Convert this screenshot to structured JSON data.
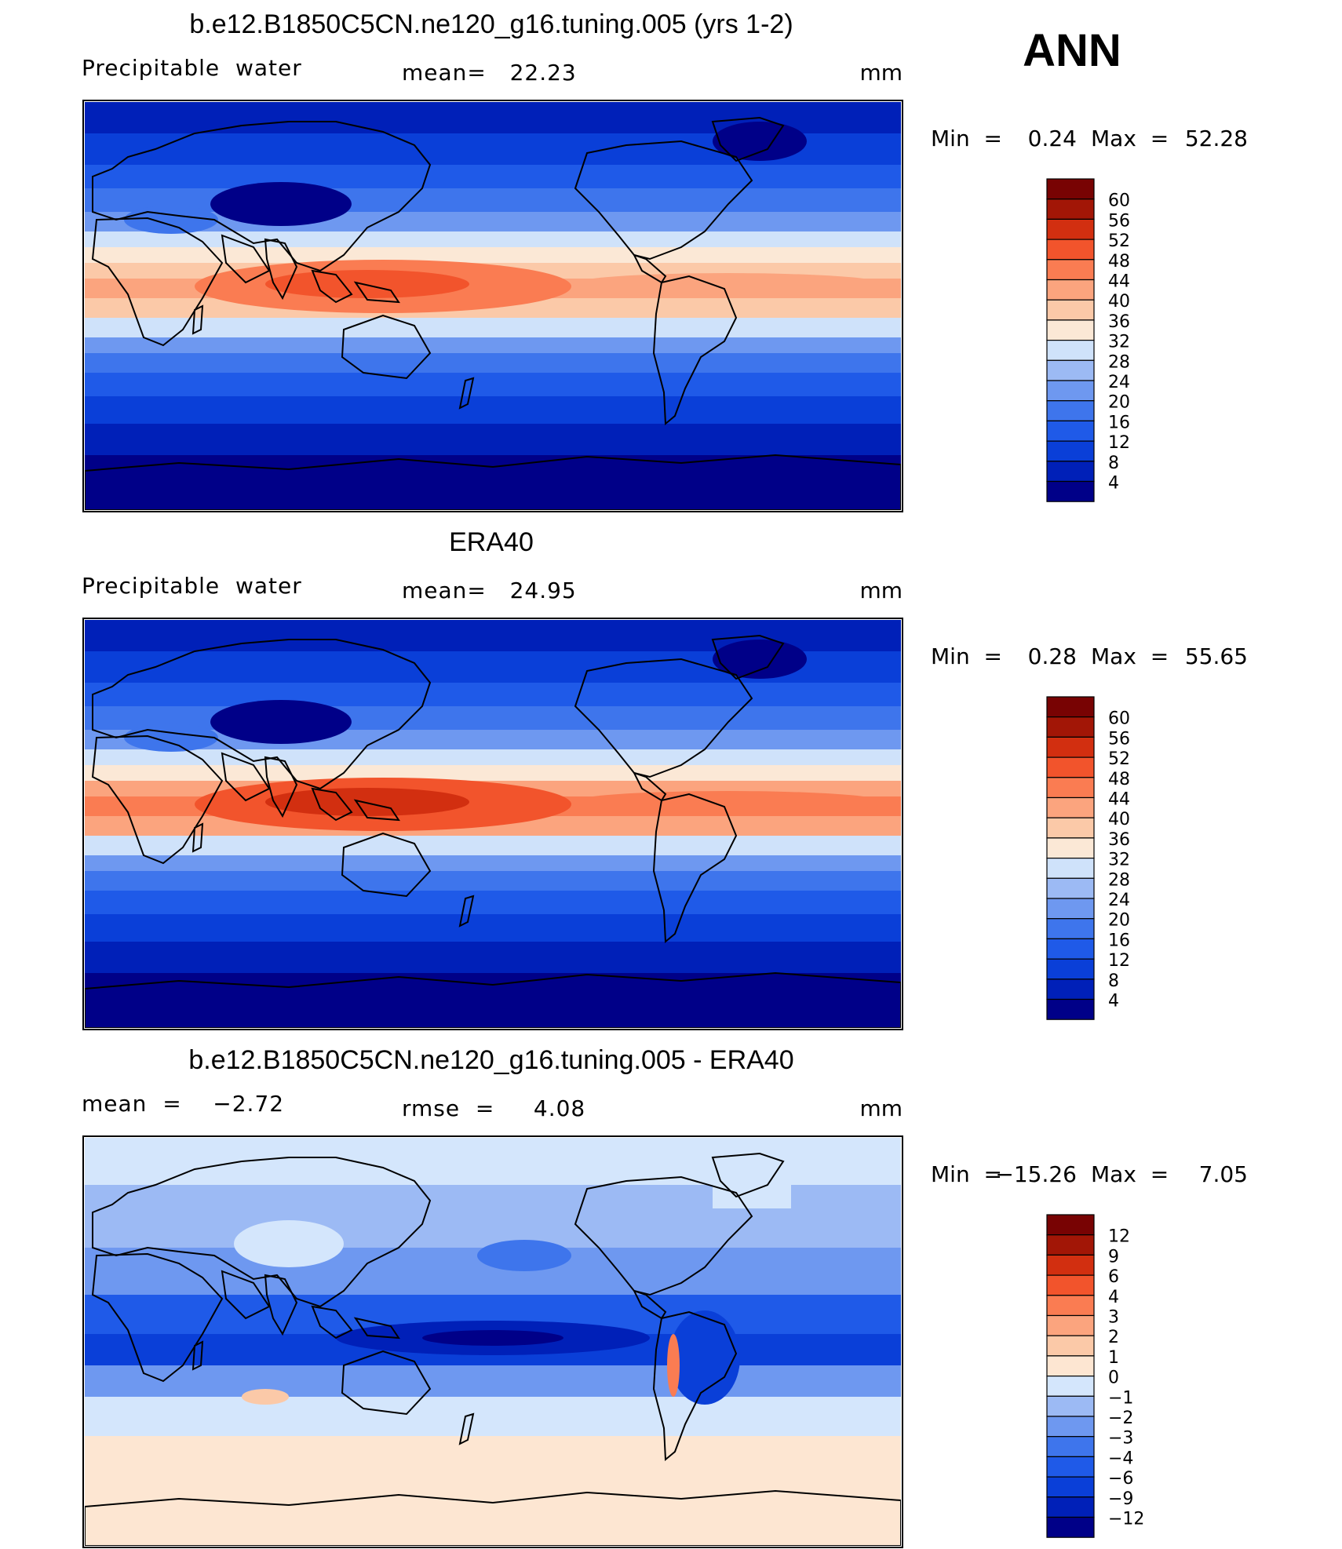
{
  "season": "ANN",
  "panels": [
    {
      "id": "model",
      "title": "b.e12.B1850C5CN.ne120_g16.tuning.005 (yrs 1-2)",
      "left_label": "Precipitable  water",
      "center_label": "mean=   22.23",
      "units": "mm",
      "minmax": {
        "min_label": "Min  =",
        "min_value": "0.24",
        "max_label": "Max  =",
        "max_value": "52.28"
      },
      "colorbar": {
        "colors": [
          "#000088",
          "#0020b8",
          "#0a3fd8",
          "#1f5ae8",
          "#3e75ec",
          "#6e98f0",
          "#9cbaf4",
          "#cfe2fa",
          "#fbe8d6",
          "#fbc9a8",
          "#fba47e",
          "#fa7c52",
          "#f2542c",
          "#d22f10",
          "#a21606",
          "#780303"
        ],
        "labels": [
          "4",
          "8",
          "12",
          "16",
          "20",
          "24",
          "28",
          "32",
          "36",
          "40",
          "44",
          "48",
          "52",
          "56",
          "60"
        ]
      }
    },
    {
      "id": "obs",
      "title": "ERA40",
      "left_label": "Precipitable  water",
      "center_label": "mean=   24.95",
      "units": "mm",
      "minmax": {
        "min_label": "Min  =",
        "min_value": "0.28",
        "max_label": "Max  =",
        "max_value": "55.65"
      },
      "colorbar": {
        "colors": [
          "#000088",
          "#0020b8",
          "#0a3fd8",
          "#1f5ae8",
          "#3e75ec",
          "#6e98f0",
          "#9cbaf4",
          "#cfe2fa",
          "#fbe8d6",
          "#fbc9a8",
          "#fba47e",
          "#fa7c52",
          "#f2542c",
          "#d22f10",
          "#a21606",
          "#780303"
        ],
        "labels": [
          "4",
          "8",
          "12",
          "16",
          "20",
          "24",
          "28",
          "32",
          "36",
          "40",
          "44",
          "48",
          "52",
          "56",
          "60"
        ]
      }
    },
    {
      "id": "diff",
      "title": "b.e12.B1850C5CN.ne120_g16.tuning.005 - ERA40",
      "left_label": "mean  =    −2.72",
      "center_label": "rmse  =     4.08",
      "units": "mm",
      "minmax": {
        "min_label": "Min  =",
        "min_value": "−15.26",
        "max_label": "Max  =",
        "max_value": "7.05"
      },
      "colorbar": {
        "colors": [
          "#000088",
          "#0020b8",
          "#0a3fd8",
          "#1f5ae8",
          "#3e75ec",
          "#6e98f0",
          "#9cbaf4",
          "#d4e6fc",
          "#fde6d2",
          "#fbc9a8",
          "#fba47e",
          "#fa7c52",
          "#f2542c",
          "#d22f10",
          "#a21606",
          "#780303"
        ],
        "labels": [
          "−12",
          "−9",
          "−6",
          "−4",
          "−3",
          "−2",
          "−1",
          "0",
          "1",
          "2",
          "3",
          "4",
          "6",
          "9",
          "12"
        ]
      }
    }
  ]
}
